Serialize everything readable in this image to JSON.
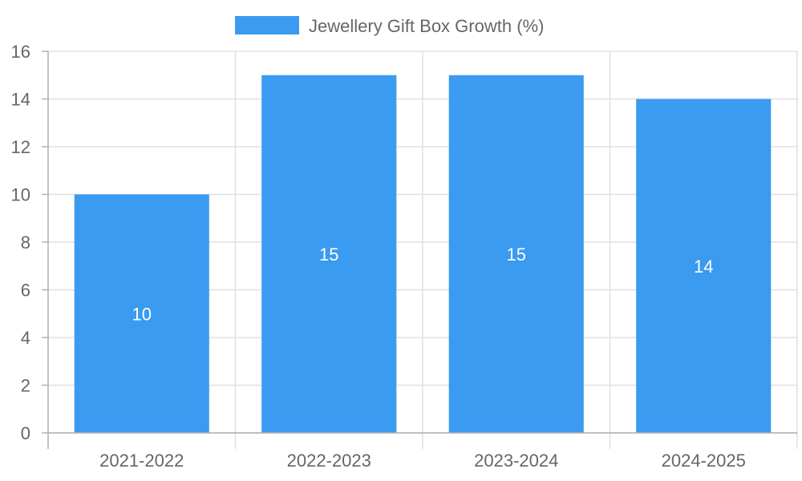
{
  "chart_data": {
    "type": "bar",
    "title": "",
    "xlabel": "",
    "ylabel": "",
    "categories": [
      "2021-2022",
      "2022-2023",
      "2023-2024",
      "2024-2025"
    ],
    "series": [
      {
        "name": "Jewellery Gift Box Growth (%)",
        "values": [
          10,
          15,
          15,
          14
        ]
      }
    ],
    "ylim": [
      0,
      16
    ],
    "yticks": [
      0,
      2,
      4,
      6,
      8,
      10,
      12,
      14,
      16
    ],
    "grid": true,
    "legend_position": "top-center",
    "colors": {
      "bar": "#3a9bf0",
      "grid": "#e0e0e0",
      "axis": "#b0b0b0",
      "text": "#666666",
      "data_label": "#ffffff"
    }
  }
}
